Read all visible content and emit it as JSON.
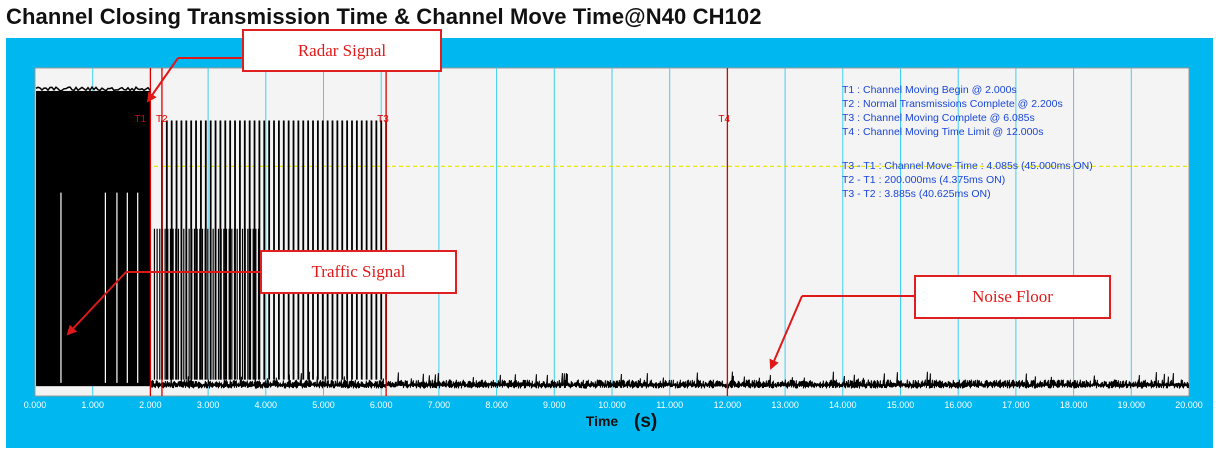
{
  "title": "Channel Closing Transmission Time & Channel Move Time@N40 CH102",
  "colors": {
    "frame": "#00b7ef",
    "plot_bg": "#f4f4f4",
    "gridline": "#3fd0f0",
    "marker": "#e00000",
    "threshold": "#e8e800",
    "signal": "#000000",
    "info_text": "#1a46d8",
    "annotation": "#e01818"
  },
  "annotations": {
    "radar": "Radar Signal",
    "traffic": "Traffic Signal",
    "noise": "Noise Floor"
  },
  "chart_data": {
    "type": "line",
    "title": "Channel Closing Transmission Time & Channel Move Time@N40 CH102",
    "xlabel": "Time",
    "xlabel_unit": "(s)",
    "ylabel": "",
    "xlim": [
      0,
      20
    ],
    "ylim": [
      0,
      1
    ],
    "grid": true,
    "x_ticks": [
      "0.000",
      "1.000",
      "2.000",
      "3.000",
      "4.000",
      "5.000",
      "6.000",
      "7.000",
      "8.000",
      "9.000",
      "10.000",
      "11.000",
      "12.000",
      "13.000",
      "14.000",
      "15.000",
      "16.000",
      "17.000",
      "18.000",
      "19.000",
      "20.000"
    ],
    "threshold_level": 0.7,
    "markers": [
      {
        "label": "T1",
        "x": 2.0
      },
      {
        "label": "T2",
        "x": 2.2
      },
      {
        "label": "T3",
        "x": 6.085
      },
      {
        "label": "T4",
        "x": 12.0
      }
    ],
    "segments": [
      {
        "name": "radar burst",
        "x_start": 0.0,
        "x_end": 2.0,
        "level": 0.93
      },
      {
        "name": "traffic bursts",
        "x_start": 2.2,
        "x_end": 6.085,
        "level": 0.84
      },
      {
        "name": "noise floor",
        "x_start": 2.0,
        "x_end": 20.0,
        "level": 0.05
      }
    ],
    "info_lines": [
      "T1 : Channel Moving Begin @ 2.000s",
      "T2 : Normal Transmissions Complete @ 2.200s",
      "T3 : Channel Moving Complete @ 6.085s",
      "T4 : Channel Moving Time Limit @ 12.000s",
      "T3 - T1 : Channel Move Time : 4.085s (45.000ms ON)",
      "T2 - T1 : 200.000ms (4.375ms ON)",
      "T3 - T2 : 3.885s (40.625ms ON)"
    ]
  }
}
